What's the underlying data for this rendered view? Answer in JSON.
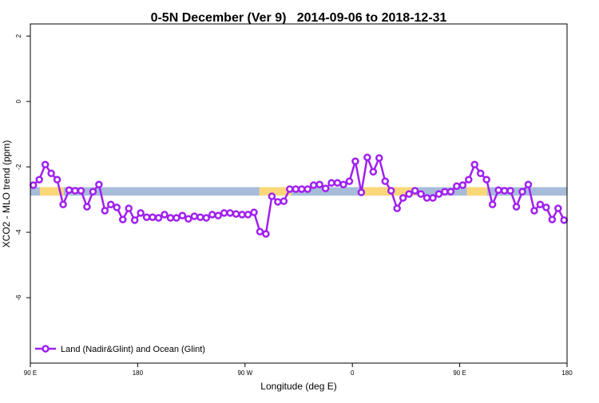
{
  "chart_data": {
    "type": "line",
    "title": "0-5N December (Ver 9)   2014-09-06 to 2018-12-31",
    "xlabel": "Longitude (deg E)",
    "ylabel": "XCO2 - MLO trend (ppm)",
    "x": [
      92.5,
      97.5,
      102.5,
      107.5,
      112.5,
      117.5,
      122.5,
      127.5,
      132.5,
      137.5,
      142.5,
      147.5,
      152.5,
      157.5,
      162.5,
      167.5,
      172.5,
      177.5,
      182.5,
      187.5,
      192.5,
      197.5,
      202.5,
      207.5,
      212.5,
      217.5,
      222.5,
      227.5,
      232.5,
      237.5,
      242.5,
      247.5,
      252.5,
      257.5,
      262.5,
      267.5,
      272.5,
      277.5,
      282.5,
      287.5,
      292.5,
      297.5,
      302.5,
      307.5,
      312.5,
      317.5,
      322.5,
      327.5,
      332.5,
      337.5,
      342.5,
      347.5,
      352.5,
      357.5,
      362.5,
      367.5,
      372.5,
      377.5,
      382.5,
      387.5,
      392.5,
      397.5,
      402.5,
      407.5,
      412.5,
      417.5,
      422.5,
      427.5,
      432.5,
      437.5,
      442.5,
      447.5,
      452.5,
      457.5,
      462.5,
      467.5,
      472.5,
      477.5,
      482.5,
      487.5,
      492.5,
      497.5,
      502.5,
      507.5,
      512.5,
      517.5,
      522.5,
      527.5,
      532.5,
      537.5
    ],
    "series": [
      {
        "name": "Land (Nadir&Glint) and Ocean (Glint)",
        "color": "#a020f0",
        "values": [
          -2.56,
          -2.39,
          -1.93,
          -2.2,
          -2.39,
          -3.15,
          -2.71,
          -2.73,
          -2.73,
          -3.22,
          -2.76,
          -2.54,
          -3.34,
          -3.15,
          -3.24,
          -3.61,
          -3.27,
          -3.63,
          -3.41,
          -3.54,
          -3.54,
          -3.56,
          -3.46,
          -3.56,
          -3.56,
          -3.49,
          -3.59,
          -3.51,
          -3.54,
          -3.56,
          -3.46,
          -3.49,
          -3.41,
          -3.41,
          -3.44,
          -3.46,
          -3.46,
          -3.39,
          -3.98,
          -4.05,
          -2.9,
          -3.07,
          -3.05,
          -2.68,
          -2.68,
          -2.68,
          -2.68,
          -2.56,
          -2.54,
          -2.66,
          -2.49,
          -2.49,
          -2.54,
          -2.44,
          -1.83,
          -2.78,
          -1.71,
          -2.15,
          -1.73,
          -2.44,
          -2.73,
          -3.27,
          -2.95,
          -2.83,
          -2.73,
          -2.83,
          -2.95,
          -2.95,
          -2.83,
          -2.76,
          -2.76,
          -2.59,
          -2.56,
          -2.39,
          -1.93,
          -2.2,
          -2.39,
          -3.15,
          -2.71,
          -2.73,
          -2.73,
          -3.22,
          -2.76,
          -2.54,
          -3.34,
          -3.15,
          -3.24,
          -3.61,
          -3.27,
          -3.63
        ]
      }
    ],
    "surface_band": {
      "ylim": [
        -2.88,
        -2.62
      ],
      "ocean_color": "#a7bcd9",
      "land_color": "#fbd77a",
      "land_segments": [
        [
          98,
          118
        ],
        [
          282,
          309
        ],
        [
          369,
          413
        ],
        [
          456,
          473
        ]
      ]
    },
    "xlim": [
      90,
      540
    ],
    "xticks": [
      {
        "value": 90,
        "label": "90 E"
      },
      180,
      {
        "value": 270,
        "label": "90 W"
      },
      0,
      {
        "value": 450,
        "label": "90 E"
      },
      {
        "value": 540,
        "label": "180"
      }
    ],
    "ylim": [
      -8,
      2.37
    ],
    "yticks": [
      2,
      0,
      -2,
      -4,
      -6
    ],
    "legend": "bottom-left"
  }
}
